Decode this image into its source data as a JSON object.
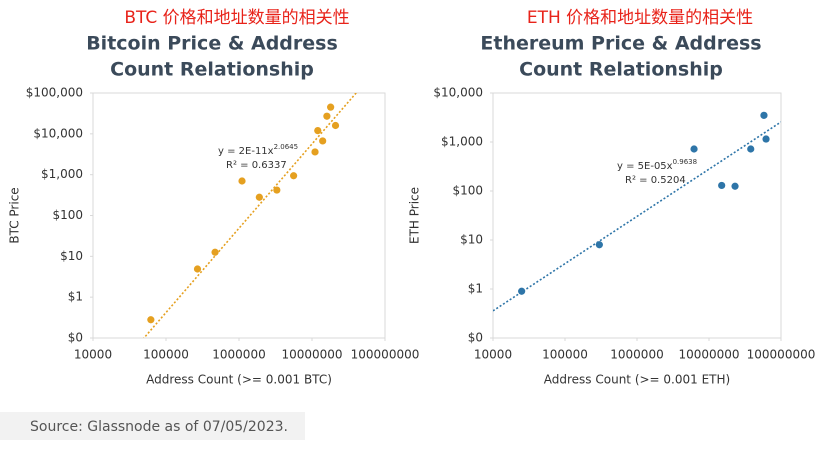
{
  "chart_data": [
    {
      "type": "scatter",
      "title": "BTC 价格和地址数量的相关性",
      "subtitle": [
        "Bitcoin Price & Address",
        "Count Relationship"
      ],
      "xlabel": "Address Count (>= 0.001 BTC)",
      "ylabel": "BTC Price",
      "x": [
        62000,
        270000,
        470000,
        1100000,
        1900000,
        3300000,
        5600000,
        11000000,
        12000000,
        14000000,
        16000000,
        18000000,
        21000000
      ],
      "values": [
        0.28,
        4.9,
        12.6,
        700,
        280,
        420,
        940,
        3600,
        12000,
        6700,
        27000,
        45000,
        16000
      ],
      "color": "#e5a020",
      "log_x": true,
      "log_y": true,
      "xlim": [
        10000,
        100000000
      ],
      "xticks": [
        10000,
        100000,
        1000000,
        10000000,
        100000000
      ],
      "ylim": [
        0.1,
        100000
      ],
      "yticks": [
        {
          "value": 0.1,
          "label": "$0"
        },
        {
          "value": 1,
          "label": "$1"
        },
        {
          "value": 10,
          "label": "$10"
        },
        {
          "value": 100,
          "label": "$100"
        },
        {
          "value": 1000,
          "label": "$1,000"
        },
        {
          "value": 10000,
          "label": "$10,000"
        },
        {
          "value": 100000,
          "label": "$100,000"
        }
      ],
      "trendline": {
        "coefficient": 2e-11,
        "power": 2.0645,
        "equation": "y = 2E-11x",
        "exponent": "2.0645",
        "r_squared": "R² = 0.6337"
      }
    },
    {
      "type": "scatter",
      "title": "ETH 价格和地址数量的相关性",
      "subtitle": [
        "Ethereum Price & Address",
        "Count Relationship"
      ],
      "xlabel": "Address Count (>= 0.001 ETH)",
      "ylabel": "ETH Price",
      "x": [
        25000,
        300000,
        6200000,
        15000000,
        23000000,
        38000000,
        58000000,
        62000000
      ],
      "values": [
        0.9,
        8,
        720,
        130,
        125,
        720,
        3500,
        1150
      ],
      "color": "#2e75a8",
      "log_x": true,
      "log_y": true,
      "xlim": [
        10000,
        100000000
      ],
      "xticks": [
        10000,
        100000,
        1000000,
        10000000,
        100000000
      ],
      "ylim": [
        0.1,
        10000
      ],
      "yticks": [
        {
          "value": 0.1,
          "label": "$0"
        },
        {
          "value": 1,
          "label": "$1"
        },
        {
          "value": 10,
          "label": "$10"
        },
        {
          "value": 100,
          "label": "$100"
        },
        {
          "value": 1000,
          "label": "$1,000"
        },
        {
          "value": 10000,
          "label": "$10,000"
        }
      ],
      "trendline": {
        "coefficient": 5e-05,
        "power": 0.9638,
        "equation": "y = 5E-05x",
        "exponent": "0.9638",
        "r_squared": "R² = 0.5204"
      }
    }
  ],
  "source": "Source: Glassnode as of 07/05/2023."
}
